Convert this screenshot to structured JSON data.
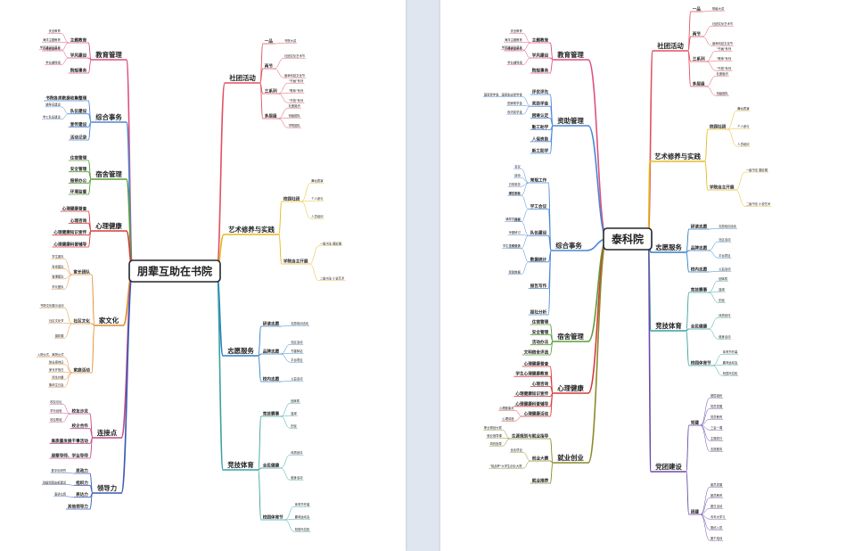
{
  "left": {
    "root": "朋辈互助在书院",
    "branches": {
      "jygl": {
        "label": "教育管理",
        "subs": [
          {
            "label": "主题教育",
            "leaves": [
              "安全教育",
              "海洋主题教育",
              "心理健康教育"
            ]
          },
          {
            "label": "学风建设",
            "leaves": [
              "学风建设示范月",
              "学业辅导组"
            ]
          },
          {
            "label": "院规事务",
            "leaves": []
          }
        ]
      },
      "zhsw": {
        "label": "综合事务",
        "subs": [
          {
            "label": "书院各类数据收集整理",
            "leaves": []
          },
          {
            "label": "队伍建设",
            "leaves": [
              "辅导员建设",
              "学工队伍建设"
            ]
          },
          {
            "label": "宣传建设",
            "leaves": []
          },
          {
            "label": "活动记录",
            "leaves": []
          }
        ]
      },
      "ssgl": {
        "label": "宿舍管理",
        "subs": [
          {
            "label": "住宿管理",
            "leaves": []
          },
          {
            "label": "安全管理",
            "leaves": []
          },
          {
            "label": "报修办公",
            "leaves": []
          },
          {
            "label": "环境监督",
            "leaves": []
          }
        ]
      },
      "xljk": {
        "label": "心理健康",
        "subs": [
          {
            "label": "心理健康普查",
            "leaves": []
          },
          {
            "label": "心理咨询",
            "leaves": []
          },
          {
            "label": "心理健康知识宣传",
            "leaves": []
          },
          {
            "label": "心理健康科普辅导",
            "leaves": []
          }
        ]
      },
      "jwh": {
        "label": "家文化",
        "subs": [
          {
            "label": "家长团队",
            "leaves": [
              "学生团队",
              "导师团队",
              "管理团队",
              "学长团队"
            ]
          },
          {
            "label": "社区文化",
            "leaves": [
              "书院文化展示活动",
              "社区文化节",
              "摄影展"
            ]
          },
          {
            "label": "家庭活动",
            "leaves": [
              "入院仪式、离院仪式",
              "院长接待日",
              "家长开放日",
              "师生共餐",
              "集体生日会"
            ]
          }
        ]
      },
      "ljd": {
        "label": "连接点",
        "subs": [
          {
            "label": "校友沙龙",
            "leaves": [
              "校友论坛",
              "学长经验",
              "校友联谊"
            ]
          },
          {
            "label": "校企合作",
            "leaves": []
          },
          {
            "label": "高质量发展干事活动",
            "leaves": []
          },
          {
            "label": "朋辈导师、学业导师",
            "leaves": []
          }
        ]
      },
      "ldl": {
        "label": "领导力",
        "subs": [
          {
            "label": "思政力",
            "leaves": [
              "数字化研究"
            ]
          },
          {
            "label": "组织力",
            "leaves": [
              "班级和团支部建设"
            ]
          },
          {
            "label": "表达力",
            "leaves": [
              "演讲比赛"
            ]
          },
          {
            "label": "其他领导力",
            "leaves": []
          }
        ]
      },
      "sthd": {
        "label": "社团活动",
        "subs": [
          {
            "label": "一品",
            "leaves": [
              "书院大讲"
            ]
          },
          {
            "label": "两节",
            "leaves": [
              "社团文化艺术节",
              "朋辈科技文化节"
            ]
          },
          {
            "label": "三系列",
            "leaves": [
              "\"书画\"系列",
              "\"歌咏\"系列",
              "\"书苑\"系列"
            ]
          },
          {
            "label": "多层级",
            "leaves": [
              "社团组织",
              "班级团队",
              "学院团队"
            ]
          }
        ]
      },
      "ysxy": {
        "label": "艺术修养与实践",
        "subs": [
          {
            "label": "校园社团",
            "leaves": [
              "舞台表演",
              "个人参与",
              "人员培训"
            ]
          },
          {
            "label": "学院自主开展",
            "leaves": [
              "一级书法 摄影展",
              "二级书法 小说艺术"
            ]
          }
        ]
      },
      "zyfw": {
        "label": "志愿服务",
        "subs": [
          {
            "label": "研读志愿",
            "leaves": [
              "志愿培训活动"
            ]
          },
          {
            "label": "品牌志愿",
            "leaves": [
              "社区活动",
              "书香驿站",
              "平台项目"
            ]
          },
          {
            "label": "校内志愿",
            "leaves": [
              "公益活动"
            ]
          }
        ]
      },
      "jjty": {
        "label": "竞技体育",
        "subs": [
          {
            "label": "竞技赛事",
            "leaves": [
              "团体赛",
              "篮球",
              "田径"
            ]
          },
          {
            "label": "全民健康",
            "leaves": [
              "体质测评",
              "健身活动"
            ]
          },
          {
            "label": "校园体育节",
            "leaves": [
              "体育节开幕",
              "趣味运动会",
              "校园马拉松"
            ]
          }
        ]
      }
    }
  },
  "right": {
    "root": "泰科院",
    "branches": {
      "jygl": {
        "label": "教育管理",
        "subs": [
          {
            "label": "主题教育",
            "leaves": [
              "安全教育",
              "海洋主题教育",
              "心理健康教育"
            ]
          },
          {
            "label": "学风建设",
            "leaves": [
              "学风建设示范月",
              "学业辅导组"
            ]
          },
          {
            "label": "院规事务",
            "leaves": []
          }
        ]
      },
      "zzgl": {
        "label": "资助管理",
        "subs": [
          {
            "label": "评优评先",
            "leaves": []
          },
          {
            "label": "奖助学金",
            "leaves": [
              "国家奖学金、国家励志奖学金",
              "国家助学金",
              "校内奖学金"
            ]
          },
          {
            "label": "困难认定",
            "leaves": []
          },
          {
            "label": "勤工助学",
            "leaves": []
          },
          {
            "label": "人保资助",
            "leaves": []
          },
          {
            "label": "新工助学",
            "leaves": []
          }
        ]
      },
      "zhsw": {
        "label": "综合事务",
        "subs": [
          {
            "label": "常规工作",
            "leaves": [
              "会议",
              "接待",
              "日常事务",
              "通知发布"
            ]
          },
          {
            "label": "学工会议",
            "leaves": [
              "学工例会",
              "周报"
            ]
          },
          {
            "label": "队伍建设",
            "leaves": [
              "辅导员培训",
              "专题研讨",
              "工作交流"
            ]
          },
          {
            "label": "数据统计",
            "leaves": [
              "学生信息统计",
              "奖助数据"
            ]
          },
          {
            "label": "报告写作",
            "leaves": []
          },
          {
            "label": "报社分析",
            "leaves": []
          }
        ]
      },
      "ssgl": {
        "label": "宿舍管理",
        "subs": [
          {
            "label": "住宿管理",
            "leaves": []
          },
          {
            "label": "安全管理",
            "leaves": []
          },
          {
            "label": "活动办法",
            "leaves": []
          },
          {
            "label": "文明宿舍评选",
            "leaves": []
          }
        ]
      },
      "xljk": {
        "label": "心理健康",
        "subs": [
          {
            "label": "心理健康普查",
            "leaves": []
          },
          {
            "label": "学生心理健康教育",
            "leaves": []
          },
          {
            "label": "心理咨询",
            "leaves": []
          },
          {
            "label": "心理健康知识宣传",
            "leaves": []
          },
          {
            "label": "心理健康科普辅导",
            "leaves": []
          },
          {
            "label": "心理健康活动",
            "leaves": [
              "心理健康月",
              "心理讲座"
            ]
          }
        ]
      },
      "jycy": {
        "label": "就业创业",
        "subs": [
          {
            "label": "生涯规划与就业指导",
            "leaves": [
              "职业规划大赛",
              "就业指导课",
              "简历指导"
            ]
          },
          {
            "label": "创业大赛",
            "leaves": [
              "创业项目",
              "\"挑战杯\"大学生创业大赛"
            ]
          },
          {
            "label": "就业推荐",
            "leaves": []
          }
        ]
      },
      "sthd": {
        "label": "社团活动",
        "subs": [
          {
            "label": "一品",
            "leaves": [
              "院级大讲"
            ]
          },
          {
            "label": "两节",
            "leaves": [
              "社团文化艺术节",
              "朋辈科技文化节"
            ]
          },
          {
            "label": "三系列",
            "leaves": [
              "\"书画\"系列",
              "\"歌咏\"系列",
              "\"书苑\"系列"
            ]
          },
          {
            "label": "多层级",
            "leaves": [
              "社团组织",
              "班级团队"
            ]
          }
        ]
      },
      "ysxy": {
        "label": "艺术修养与实践",
        "subs": [
          {
            "label": "校园社团",
            "leaves": [
              "舞台表演",
              "个人参与",
              "人员培训"
            ]
          },
          {
            "label": "学院自主开展",
            "leaves": [
              "一级书法 摄影展",
              "二级书法 小说艺术"
            ]
          }
        ]
      },
      "zyfw": {
        "label": "志愿服务",
        "subs": [
          {
            "label": "研读志愿",
            "leaves": [
              "志愿培训活动"
            ]
          },
          {
            "label": "品牌志愿",
            "leaves": [
              "社区活动",
              "平台项目"
            ]
          },
          {
            "label": "校内志愿",
            "leaves": [
              "公益活动"
            ]
          }
        ]
      },
      "jjty": {
        "label": "竞技体育",
        "subs": [
          {
            "label": "竞技赛事",
            "leaves": [
              "团体赛",
              "篮球",
              "田径"
            ]
          },
          {
            "label": "全民健康",
            "leaves": [
              "体质测评",
              "健身活动"
            ]
          },
          {
            "label": "校园体育节",
            "leaves": [
              "体育节开幕",
              "趣味运动会",
              "校园马拉松"
            ]
          }
        ]
      },
      "djjs": {
        "label": "党团建设",
        "subs": [
          {
            "label": "党建",
            "leaves": [
              "基层组织",
              "党员发展",
              "党员教育",
              "三会一课",
              "主题党日",
              "志愿服务"
            ]
          },
          {
            "label": "团建",
            "leaves": [
              "团员发展",
              "团员教育",
              "团日活动",
              "青年大学习",
              "推优入党",
              "团干培训"
            ]
          }
        ]
      }
    }
  },
  "colors": {
    "jygl": "#e0507a",
    "zhsw": "#4a86d6",
    "ssgl": "#5a9e3a",
    "xljk": "#d93a3a",
    "jwh": "#e08a2a",
    "ljd": "#c24a8a",
    "ldl": "#3b5bb3",
    "sthd": "#e05060",
    "ysxy": "#e5b820",
    "zyfw": "#2f7fc0",
    "jjty": "#3aa0a0",
    "zzgl": "#4a86d6",
    "jycy": "#8a8a2a",
    "djjs": "#6a4aaa",
    "root": "#23262d"
  }
}
